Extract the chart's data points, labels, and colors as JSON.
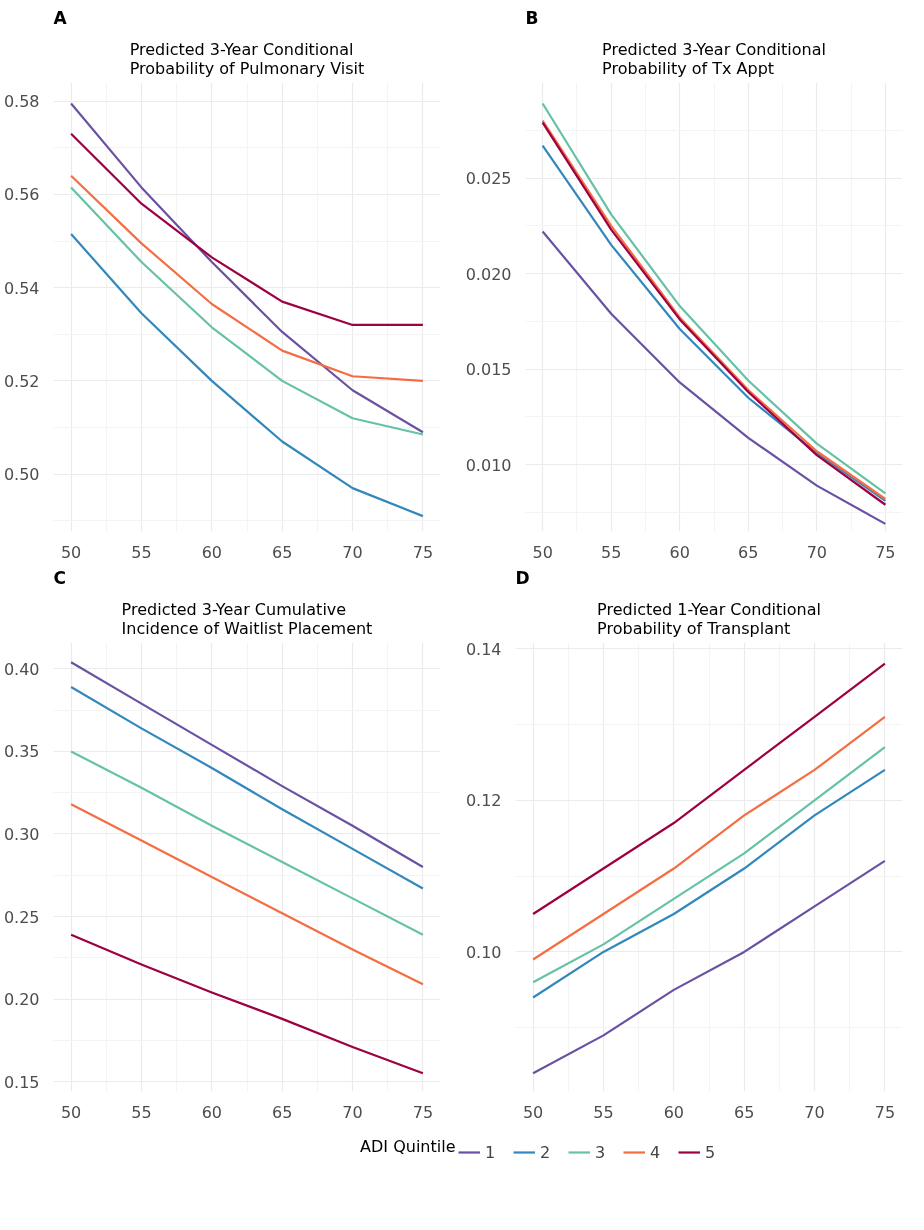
{
  "chart_data": [
    {
      "type": "line",
      "title": "Predicted 3-Year Conditional Probability of Pulmonary Visit",
      "annotations": [
        "A"
      ],
      "x": [
        50,
        55,
        60,
        65,
        70,
        75
      ],
      "xlim": [
        48.75,
        76.25
      ],
      "xticks": [
        50,
        55,
        60,
        65,
        70,
        75
      ],
      "ylim": [
        0.4877,
        0.584
      ],
      "yticks": [
        {
          "value": 0.5,
          "label": "0.50"
        },
        0.52,
        0.54,
        0.56,
        0.58
      ],
      "grid": true,
      "series": [
        {
          "color": "#6a51a3",
          "values": [
            0.5795,
            0.5615,
            0.5455,
            0.5305,
            0.518,
            0.509
          ]
        },
        {
          "color": "#3288bd",
          "values": [
            0.5515,
            0.5345,
            0.52,
            0.507,
            0.497,
            0.491
          ]
        },
        {
          "color": "#66c2a5",
          "values": [
            0.5615,
            0.5455,
            0.5315,
            0.52,
            0.512,
            0.5085
          ]
        },
        {
          "color": "#f46d43",
          "values": [
            0.564,
            0.5495,
            0.5365,
            0.5265,
            0.521,
            0.52
          ]
        },
        {
          "color": "#9e0142",
          "values": [
            0.573,
            0.558,
            0.5465,
            0.537,
            0.532,
            0.532
          ]
        }
      ]
    },
    {
      "type": "line",
      "title": "Predicted 3-Year Conditional Probability of Tx Appt",
      "annotations": [
        "B"
      ],
      "x": [
        50,
        55,
        60,
        65,
        70,
        75
      ],
      "xlim": [
        48.75,
        76.25
      ],
      "xticks": [
        50,
        55,
        60,
        65,
        70,
        75
      ],
      "ylim": [
        0.0065,
        0.03
      ],
      "yticks": [
        {
          "value": 0.01,
          "label": "0.010"
        },
        0.015,
        {
          "value": 0.02,
          "label": "0.020"
        },
        0.025
      ],
      "grid": true,
      "series": [
        {
          "color": "#6a51a3",
          "values": [
            0.0222,
            0.0179,
            0.0143,
            0.0114,
            0.0089,
            0.0069
          ]
        },
        {
          "color": "#3288bd",
          "values": [
            0.0267,
            0.0215,
            0.0171,
            0.0135,
            0.0106,
            0.0081
          ]
        },
        {
          "color": "#66c2a5",
          "values": [
            0.0289,
            0.0231,
            0.0183,
            0.0144,
            0.0111,
            0.0085
          ]
        },
        {
          "color": "#f46d43",
          "values": [
            0.028,
            0.0225,
            0.0177,
            0.0139,
            0.0107,
            0.0082
          ]
        },
        {
          "color": "#9e0142",
          "values": [
            0.0279,
            0.0223,
            0.0176,
            0.0138,
            0.0105,
            0.0079
          ]
        }
      ]
    },
    {
      "type": "line",
      "title": "Predicted 3-Year Cumulative Incidence of Waitlist Placement",
      "annotations": [
        "C"
      ],
      "x": [
        50,
        55,
        60,
        65,
        70,
        75
      ],
      "xlim": [
        48.75,
        76.25
      ],
      "xticks": [
        50,
        55,
        60,
        65,
        70,
        75
      ],
      "ylim": [
        0.144,
        0.416
      ],
      "yticks": [
        0.15,
        {
          "value": 0.2,
          "label": "0.20"
        },
        0.25,
        {
          "value": 0.3,
          "label": "0.30"
        },
        0.35,
        {
          "value": 0.4,
          "label": "0.40"
        }
      ],
      "grid": true,
      "series": [
        {
          "color": "#6a51a3",
          "values": [
            0.404,
            0.379,
            0.354,
            0.329,
            0.305,
            0.28
          ]
        },
        {
          "color": "#3288bd",
          "values": [
            0.389,
            0.364,
            0.34,
            0.315,
            0.291,
            0.267
          ]
        },
        {
          "color": "#66c2a5",
          "values": [
            0.35,
            0.328,
            0.305,
            0.283,
            0.261,
            0.239
          ]
        },
        {
          "color": "#f46d43",
          "values": [
            0.318,
            0.296,
            0.274,
            0.252,
            0.23,
            0.209
          ]
        },
        {
          "color": "#9e0142",
          "values": [
            0.239,
            0.221,
            0.204,
            0.188,
            0.171,
            0.155
          ]
        }
      ]
    },
    {
      "type": "line",
      "title": "Predicted 1-Year Conditional Probability of Transplant",
      "annotations": [
        "D"
      ],
      "x": [
        50,
        55,
        60,
        65,
        70,
        75
      ],
      "xlim": [
        48.75,
        76.25
      ],
      "xticks": [
        50,
        55,
        60,
        65,
        70,
        75
      ],
      "ylim": [
        0.0816,
        0.1408
      ],
      "yticks": [
        {
          "value": 0.1,
          "label": "0.10"
        },
        0.12,
        0.14
      ],
      "grid": true,
      "legend": "bottom",
      "legend_title": "ADI Quintile",
      "series": [
        {
          "name": "1",
          "color": "#6a51a3",
          "values": [
            0.084,
            0.089,
            0.095,
            0.1,
            0.106,
            0.112
          ]
        },
        {
          "name": "2",
          "color": "#3288bd",
          "values": [
            0.094,
            0.1,
            0.105,
            0.111,
            0.118,
            0.124
          ]
        },
        {
          "name": "3",
          "color": "#66c2a5",
          "values": [
            0.096,
            0.101,
            0.107,
            0.113,
            0.12,
            0.127
          ]
        },
        {
          "name": "4",
          "color": "#f46d43",
          "values": [
            0.099,
            0.105,
            0.111,
            0.118,
            0.124,
            0.131
          ]
        },
        {
          "name": "5",
          "color": "#9e0142",
          "values": [
            0.105,
            0.111,
            0.117,
            0.124,
            0.131,
            0.138
          ]
        }
      ]
    }
  ]
}
